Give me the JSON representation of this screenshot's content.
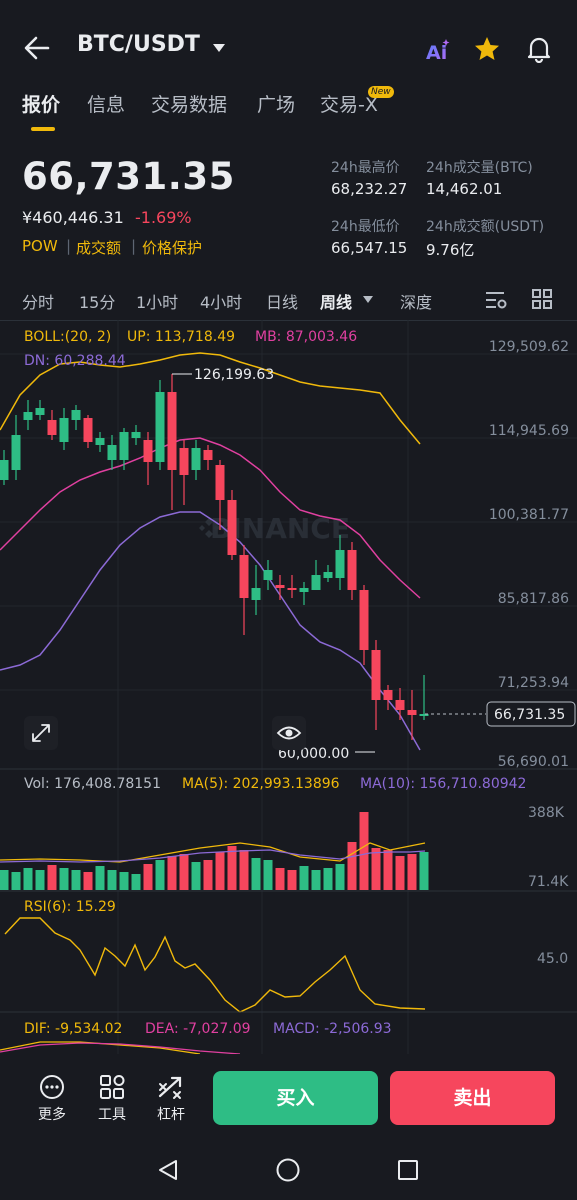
{
  "header": {
    "pair": "BTC/USDT"
  },
  "tabs": [
    {
      "label": "报价"
    },
    {
      "label": "信息"
    },
    {
      "label": "交易数据"
    },
    {
      "label": "广场"
    },
    {
      "label": "交易-X"
    }
  ],
  "new_badge": "New",
  "price": {
    "last": "66,731.35",
    "cny": "¥460,446.31",
    "change": "-1.69%",
    "tags": [
      "POW",
      "成交额",
      "价格保护"
    ]
  },
  "stats": [
    {
      "label": "24h最高价",
      "value": "68,232.27"
    },
    {
      "label": "24h成交量(BTC)",
      "value": "14,462.01"
    },
    {
      "label": "24h最低价",
      "value": "66,547.15"
    },
    {
      "label": "24h成交额(USDT)",
      "value": "9.76亿"
    }
  ],
  "intervals": [
    "分时",
    "15分",
    "1小时",
    "4小时",
    "日线",
    "周线",
    "深度"
  ],
  "chart": {
    "boll_label": "BOLL:(20, 2)",
    "up_label": "UP: 113,718.49",
    "mb_label": "MB: 87,003.46",
    "dn_label": "DN: 60,288.44",
    "y_ticks": [
      "129,509.62",
      "114,945.69",
      "100,381.77",
      "85,817.86",
      "71,253.94",
      "56,690.01"
    ],
    "high_marker": "126,199.63",
    "low_marker": "60,000.00",
    "current_price": "66,731.35",
    "watermark": "BINANCE",
    "vol_label": "Vol: 176,408.78151",
    "ma5_label": "MA(5): 202,993.13896",
    "ma10_label": "MA(10): 156,710.80942",
    "vol_ticks": [
      "388K",
      "71.4K"
    ],
    "rsi_label": "RSI(6): 15.29",
    "rsi_tick": "45.0",
    "dif_label": "DIF: -9,534.02",
    "dea_label": "DEA: -7,027.09",
    "macd_label": "MACD: -2,506.93"
  },
  "colors": {
    "up": "#2ebd85",
    "down": "#f6465d",
    "accent": "#f0b90b",
    "boll_up": "#f0b90b",
    "boll_mb": "#e040a0",
    "boll_dn": "#8c6ad6"
  },
  "toolbar": [
    {
      "label": "更多",
      "icon": "more-icon"
    },
    {
      "label": "工具",
      "icon": "tools-icon"
    },
    {
      "label": "杠杆",
      "icon": "leverage-icon"
    }
  ],
  "buy_label": "买入",
  "sell_label": "卖出"
}
